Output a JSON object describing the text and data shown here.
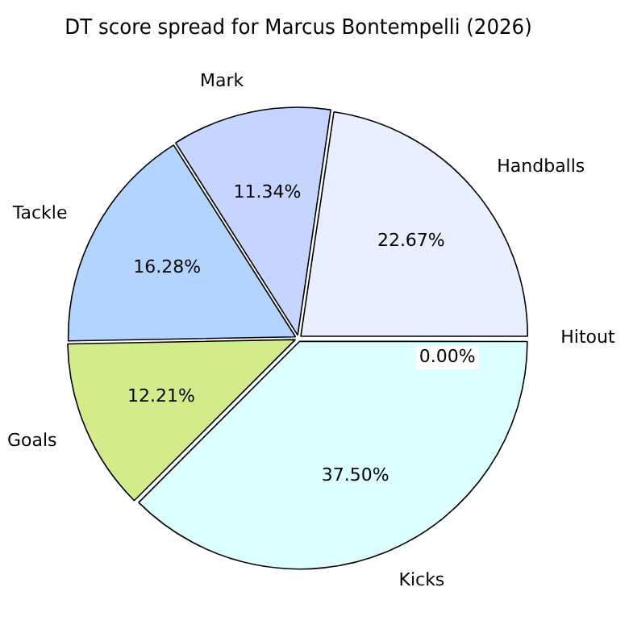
{
  "chart_data": {
    "type": "pie",
    "title": "DT score spread for Marcus Bontempelli (2026)",
    "categories": [
      "Hitout",
      "Kicks",
      "Goals",
      "Tackle",
      "Mark",
      "Handballs"
    ],
    "values": [
      0.0,
      37.5,
      12.21,
      16.28,
      11.34,
      22.67
    ],
    "colors": [
      "#ffe0e0",
      "#dcffff",
      "#d2ec8c",
      "#b3d4ff",
      "#c5d5ff",
      "#e8f0ff"
    ],
    "value_labels": [
      "0.00%",
      "37.50%",
      "12.21%",
      "16.28%",
      "11.34%",
      "22.67%"
    ],
    "legend": false
  }
}
